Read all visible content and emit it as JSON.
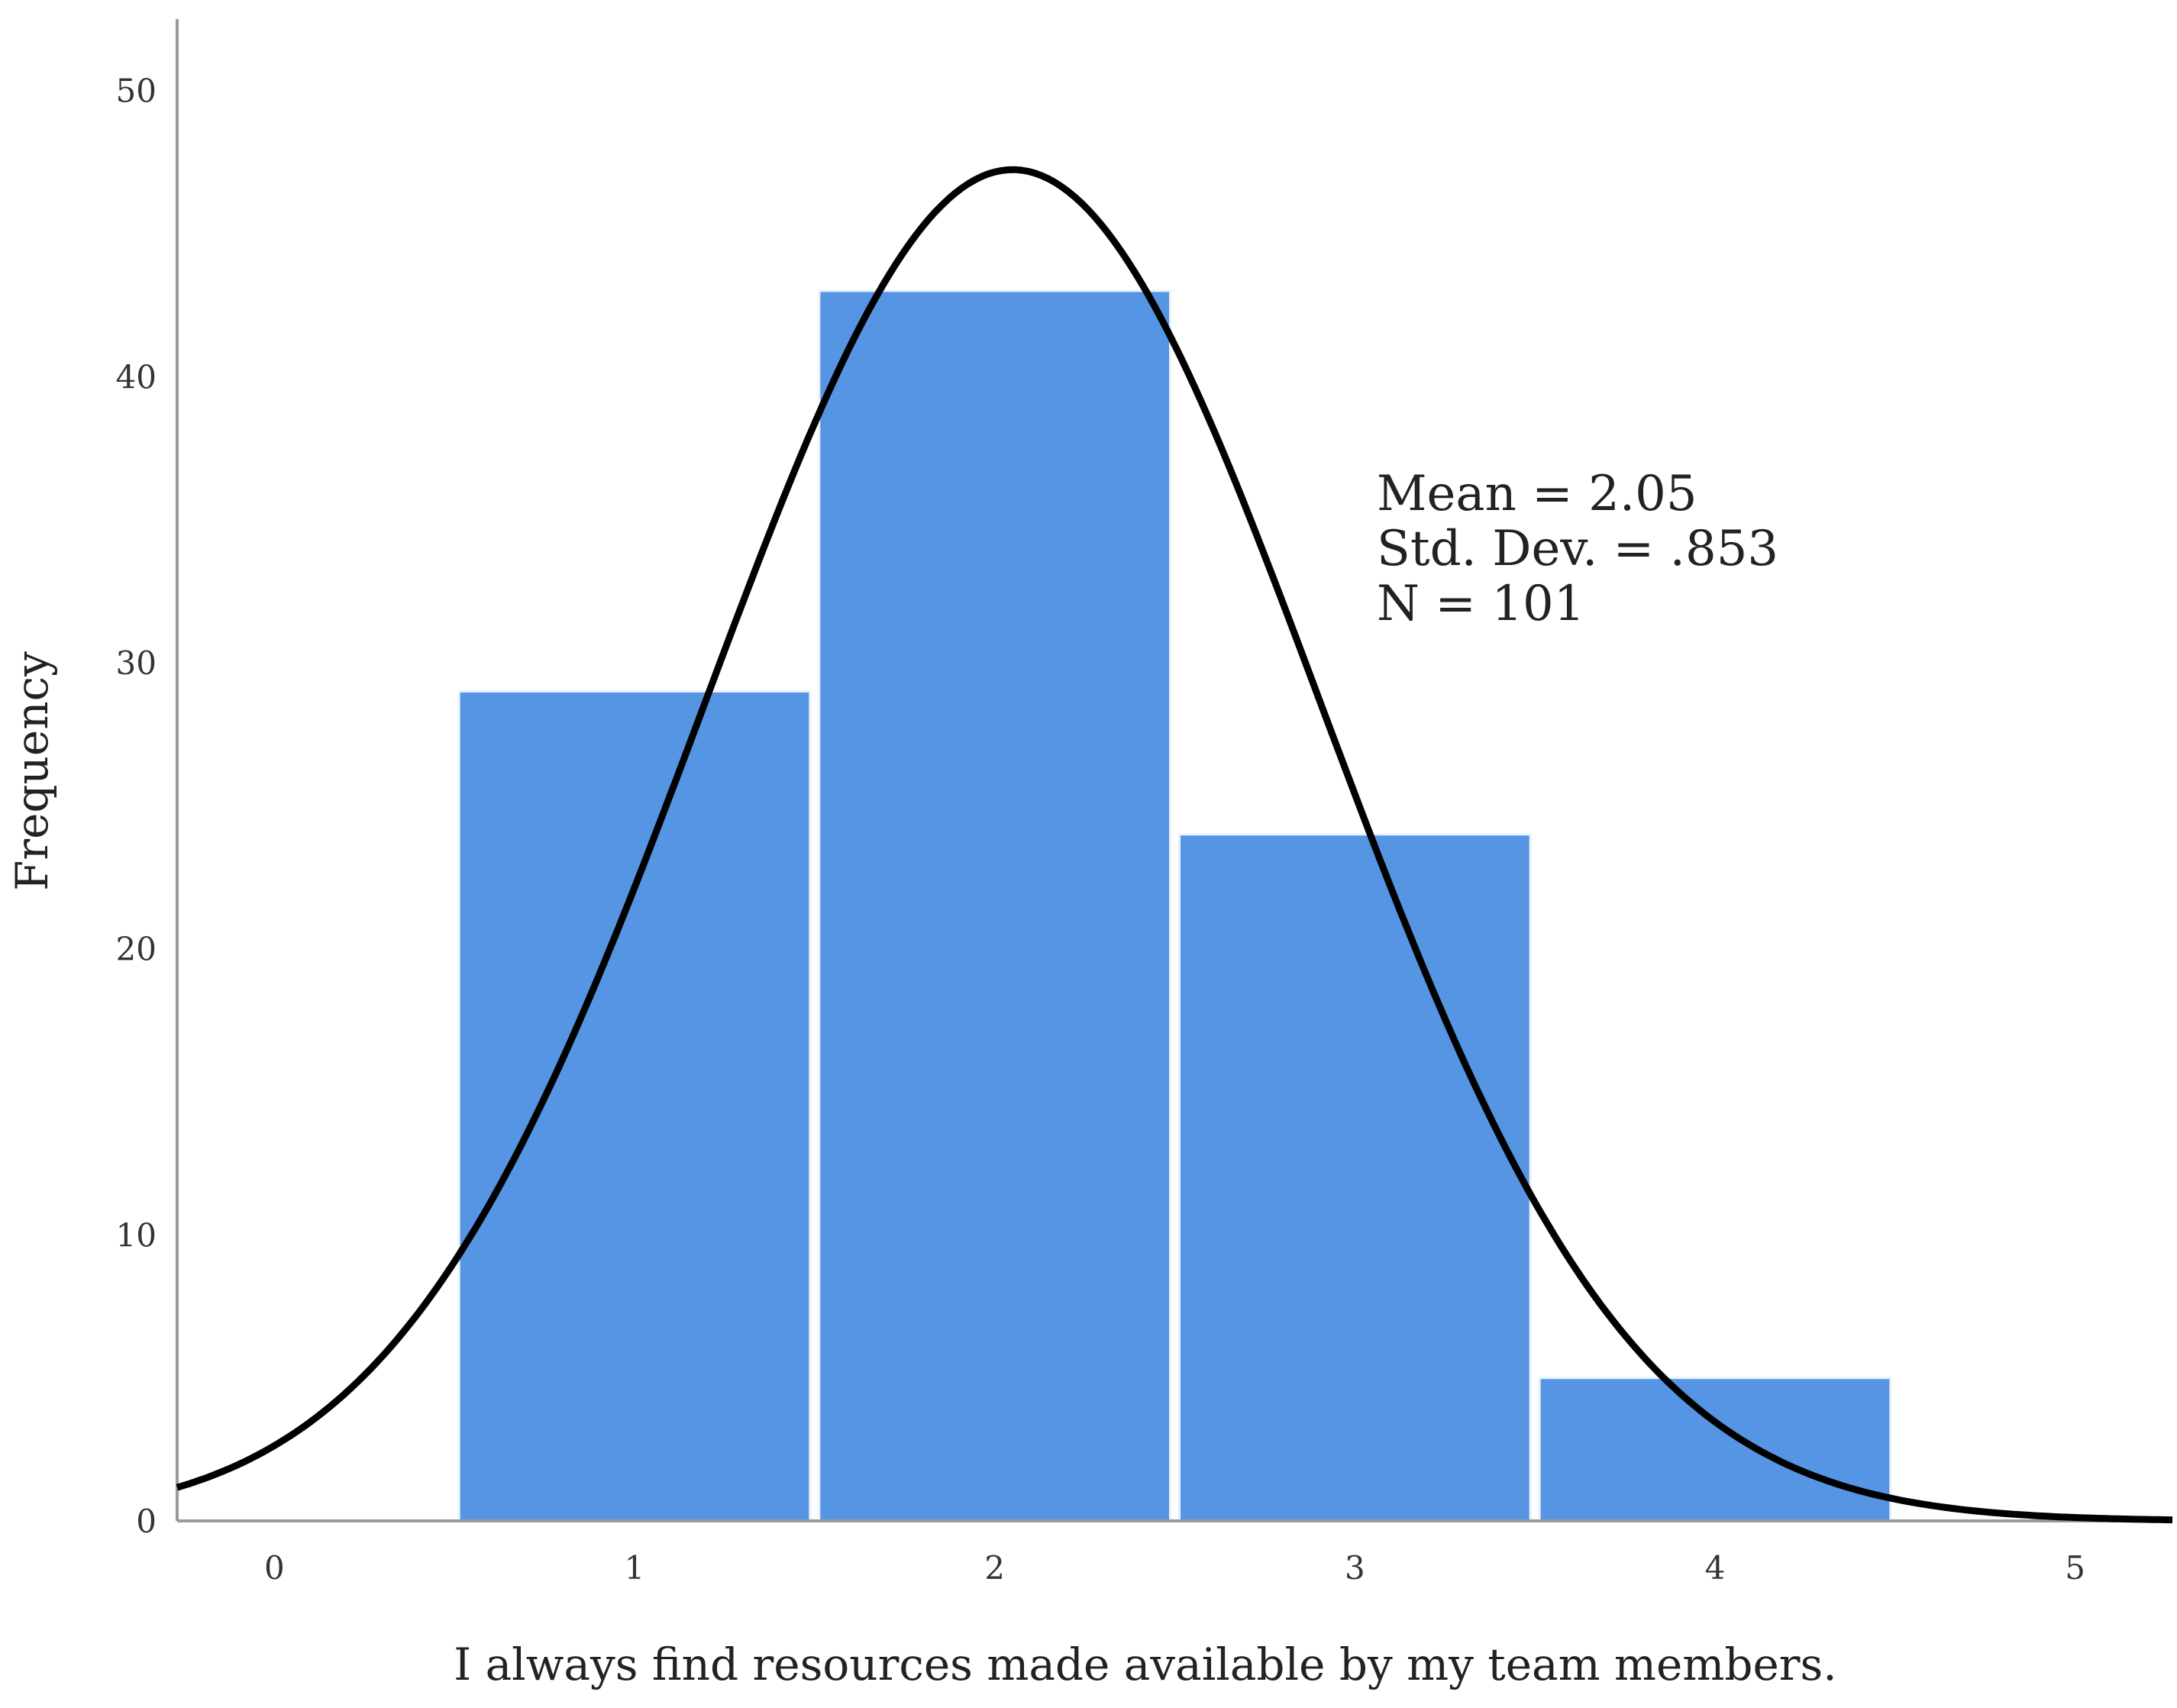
{
  "chart_data": {
    "type": "bar",
    "subtype": "histogram-with-normal-curve",
    "x_ticks": [
      "0",
      "1",
      "2",
      "3",
      "4",
      "5"
    ],
    "y_ticks": [
      "0",
      "10",
      "20",
      "30",
      "40",
      "50"
    ],
    "bins": [
      {
        "x": 1,
        "value": 29
      },
      {
        "x": 2,
        "value": 43
      },
      {
        "x": 3,
        "value": 24
      },
      {
        "x": 4,
        "value": 5
      }
    ],
    "xlim": [
      -0.27,
      5.27
    ],
    "ylim": [
      0,
      52.5
    ],
    "xlabel": "I always find resources made available by my team members.",
    "ylabel": "Frequency",
    "stats": {
      "mean_label": "Mean = 2.05",
      "sd_label": "Std. Dev. = .853",
      "n_label": "N = 101"
    },
    "normal_curve": {
      "mean": 2.05,
      "sd": 0.853,
      "n": 101,
      "bin_width": 1
    },
    "colors": {
      "bar": "#5595e3",
      "bar_edge": "#ffffff",
      "curve": "#000000",
      "axis": "#999999"
    },
    "grid": false
  }
}
